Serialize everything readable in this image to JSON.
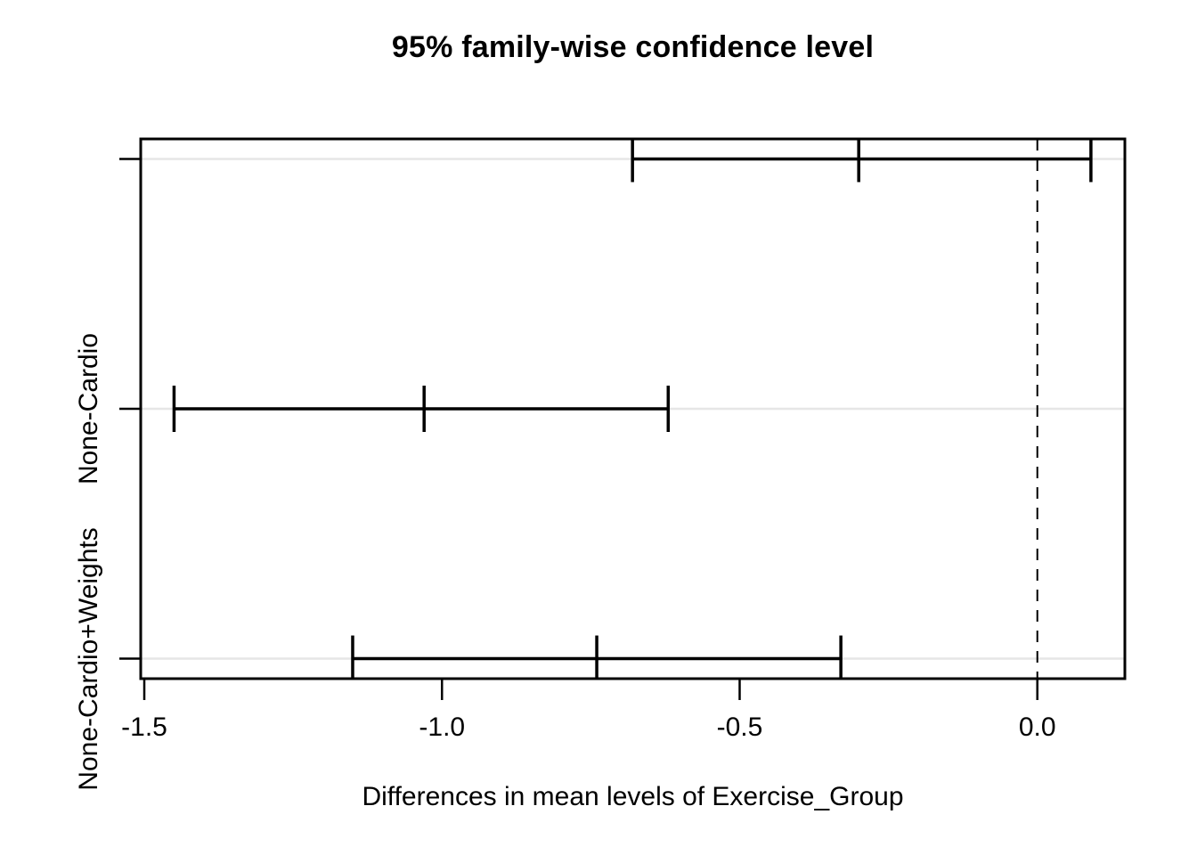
{
  "chart_data": {
    "type": "errorbar",
    "subtype": "tukey-hsd-horizontal-confidence-intervals",
    "title": "95% family-wise confidence level",
    "xlabel": "Differences in mean levels of Exercise_Group",
    "ylabel": "",
    "xlim": [
      -1.506,
      0.147
    ],
    "ylim": [
      0.92,
      3.08
    ],
    "x_ticks": [
      -1.5,
      -1.0,
      -0.5,
      0.0
    ],
    "x_tick_labels": [
      "-1.5",
      "-1.0",
      "-0.5",
      "0.0"
    ],
    "zero_reference_line": {
      "x": 0.0,
      "style": "dashed"
    },
    "grid": {
      "horizontal_lines_at_each_comparison": true,
      "vertical": false
    },
    "legend": "none",
    "comparisons": [
      {
        "label": "",
        "y": 3,
        "lower": -0.68,
        "center": -0.3,
        "upper": 0.09
      },
      {
        "label": "None-Cardio",
        "y": 2,
        "lower": -1.45,
        "center": -1.03,
        "upper": -0.62
      },
      {
        "label": "None-Cardio+Weights",
        "y": 1,
        "lower": -1.15,
        "center": -0.74,
        "upper": -0.33
      }
    ],
    "colors": {
      "background": "#ffffff",
      "axis_and_intervals": "#000000",
      "gridline": "#e6e6e6"
    }
  }
}
